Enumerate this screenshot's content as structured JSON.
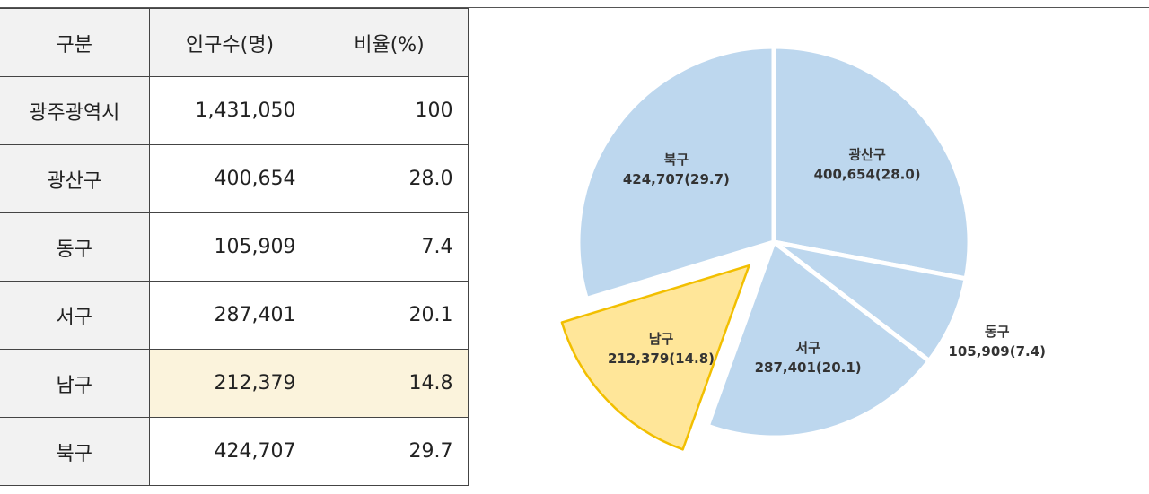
{
  "table": {
    "header": [
      "구분",
      "인구수(명)",
      "비율(%)"
    ],
    "rows": [
      [
        "광주광역시",
        "1,431,050",
        "100"
      ],
      [
        "광산구",
        "400,654",
        "28.0"
      ],
      [
        "동구",
        "105,909",
        "7.4"
      ],
      [
        "서구",
        "287,401",
        "20.1"
      ],
      [
        "남구",
        "212,379",
        "14.8"
      ],
      [
        "북구",
        "424,707",
        "29.7"
      ]
    ]
  },
  "chart_data": {
    "type": "pie",
    "categories": [
      "광산구",
      "동구",
      "서구",
      "남구",
      "북구"
    ],
    "values": [
      28.0,
      7.4,
      20.1,
      14.8,
      29.7
    ],
    "value_labels": [
      "400,654(28.0)",
      "105,909(7.4)",
      "287,401(20.1)",
      "212,379(14.8)",
      "424,707(29.7)"
    ],
    "colors": [
      "#bdd7ee",
      "#bdd7ee",
      "#bdd7ee",
      "#ffe699",
      "#bdd7ee"
    ],
    "exploded": [
      "남구"
    ]
  }
}
